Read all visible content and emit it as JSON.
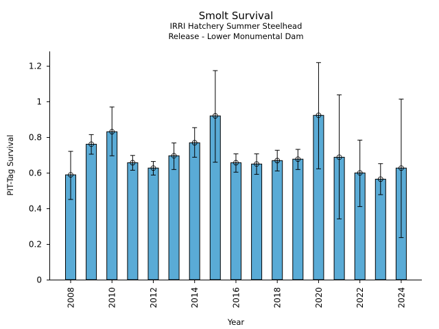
{
  "chart_data": {
    "type": "bar",
    "title": "Smolt Survival",
    "subtitle_lines": [
      "IRRI Hatchery Summer Steelhead",
      "Release - Lower Monumental Dam"
    ],
    "xlabel": "Year",
    "ylabel": "PIT-Tag Survival",
    "ylim": [
      0,
      1.28
    ],
    "yticks": [
      0,
      0.2,
      0.4,
      0.6,
      0.8,
      1,
      1.2
    ],
    "ytick_labels": [
      "0",
      "0.2",
      "0.4",
      "0.6",
      "0.8",
      "1",
      "1.2"
    ],
    "categories": [
      "2008",
      "2009",
      "2010",
      "2011",
      "2012",
      "2013",
      "2014",
      "2015",
      "2016",
      "2017",
      "2018",
      "2019",
      "2020",
      "2021",
      "2022",
      "2023",
      "2024"
    ],
    "xtick_labels": [
      "2008",
      "2010",
      "2012",
      "2014",
      "2016",
      "2018",
      "2020",
      "2022",
      "2024"
    ],
    "values": [
      0.588,
      0.76,
      0.83,
      0.656,
      0.626,
      0.695,
      0.768,
      0.919,
      0.656,
      0.649,
      0.668,
      0.676,
      0.922,
      0.687,
      0.599,
      0.564,
      0.626
    ],
    "error_upper": [
      0.72,
      0.814,
      0.969,
      0.697,
      0.663,
      0.767,
      0.853,
      1.173,
      0.706,
      0.706,
      0.726,
      0.731,
      1.218,
      1.037,
      0.783,
      0.651,
      1.013
    ],
    "error_lower": [
      0.45,
      0.704,
      0.695,
      0.614,
      0.587,
      0.618,
      0.687,
      0.659,
      0.603,
      0.591,
      0.61,
      0.618,
      0.622,
      0.341,
      0.41,
      0.477,
      0.236
    ],
    "bar_color": "#5aabd6",
    "edge_color": "#000000",
    "grid": false,
    "legend": "none"
  }
}
